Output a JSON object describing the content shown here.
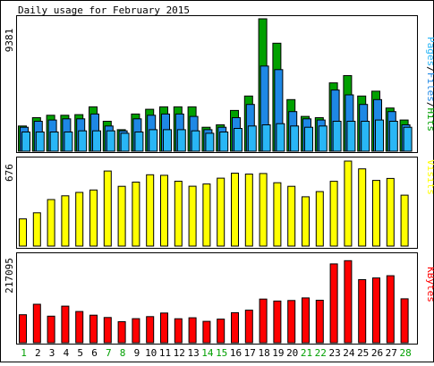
{
  "chart_data": [
    {
      "type": "bar",
      "title": "Daily usage for February 2015",
      "y_max_label": "9381",
      "ylim": [
        0,
        9381
      ],
      "ylabel": "Pages/Files/Hits",
      "legend": [
        "Pages",
        "/",
        "Files",
        "/",
        "Hits"
      ],
      "categories": [
        "1",
        "2",
        "3",
        "4",
        "5",
        "6",
        "7",
        "8",
        "9",
        "10",
        "11",
        "12",
        "13",
        "14",
        "15",
        "16",
        "17",
        "18",
        "19",
        "20",
        "21",
        "22",
        "23",
        "24",
        "25",
        "26",
        "27",
        "28"
      ],
      "series": [
        {
          "name": "Hits",
          "values": [
            1785,
            2380,
            2550,
            2550,
            2595,
            3145,
            2125,
            1530,
            2635,
            2975,
            3145,
            3145,
            3145,
            1700,
            1870,
            2890,
            3910,
            9381,
            7650,
            3655,
            2465,
            2380,
            4845,
            5355,
            3910,
            4250,
            3060,
            2210
          ]
        },
        {
          "name": "Files",
          "values": [
            1700,
            2125,
            2210,
            2295,
            2295,
            2635,
            1785,
            1445,
            2295,
            2550,
            2635,
            2635,
            2465,
            1530,
            1700,
            2380,
            3315,
            6035,
            5780,
            2805,
            2295,
            2210,
            4335,
            3995,
            3315,
            3655,
            2805,
            1870
          ]
        },
        {
          "name": "Pages",
          "values": [
            1360,
            1360,
            1360,
            1360,
            1445,
            1445,
            1445,
            1275,
            1360,
            1530,
            1530,
            1530,
            1445,
            1275,
            1360,
            1615,
            1785,
            1870,
            1955,
            1785,
            1700,
            1785,
            2125,
            2125,
            2125,
            2210,
            2125,
            1700
          ]
        }
      ]
    },
    {
      "type": "bar",
      "y_max_label": "676",
      "ylim": [
        0,
        676
      ],
      "ylabel": "Visits",
      "categories": [
        "1",
        "2",
        "3",
        "4",
        "5",
        "6",
        "7",
        "8",
        "9",
        "10",
        "11",
        "12",
        "13",
        "14",
        "15",
        "16",
        "17",
        "18",
        "19",
        "20",
        "21",
        "22",
        "23",
        "24",
        "25",
        "26",
        "27",
        "28"
      ],
      "series": [
        {
          "name": "Visits",
          "values": [
            216,
            265,
            370,
            400,
            427,
            446,
            597,
            475,
            509,
            567,
            563,
            516,
            476,
            494,
            540,
            580,
            573,
            577,
            504,
            475,
            392,
            433,
            515,
            676,
            614,
            522,
            538,
            405
          ]
        }
      ]
    },
    {
      "type": "bar",
      "y_max_label": "217095",
      "ylim": [
        0,
        217095
      ],
      "ylabel": "KBytes",
      "categories": [
        "1",
        "2",
        "3",
        "4",
        "5",
        "6",
        "7",
        "8",
        "9",
        "10",
        "11",
        "12",
        "13",
        "14",
        "15",
        "16",
        "17",
        "18",
        "19",
        "20",
        "21",
        "22",
        "23",
        "24",
        "25",
        "26",
        "27",
        "28"
      ],
      "series": [
        {
          "name": "KBytes",
          "values": [
            71600,
            98300,
            67800,
            93400,
            79700,
            70300,
            64400,
            53600,
            61500,
            66800,
            75800,
            61300,
            63700,
            54600,
            60300,
            76700,
            83200,
            111500,
            106500,
            107900,
            114500,
            108600,
            201300,
            209500,
            161000,
            165500,
            171100,
            112300
          ]
        }
      ]
    }
  ],
  "weekend_days": [
    "1",
    "7",
    "8",
    "14",
    "15",
    "21",
    "22",
    "28"
  ],
  "colors": {
    "hits": "#00a000",
    "files": "#1e88e5",
    "pages": "#29b6f6",
    "visits": "#ffff00",
    "kbytes": "#ff0000",
    "weekday_label": "#000000",
    "weekend_label": "#00a000",
    "frame": "#000000"
  }
}
